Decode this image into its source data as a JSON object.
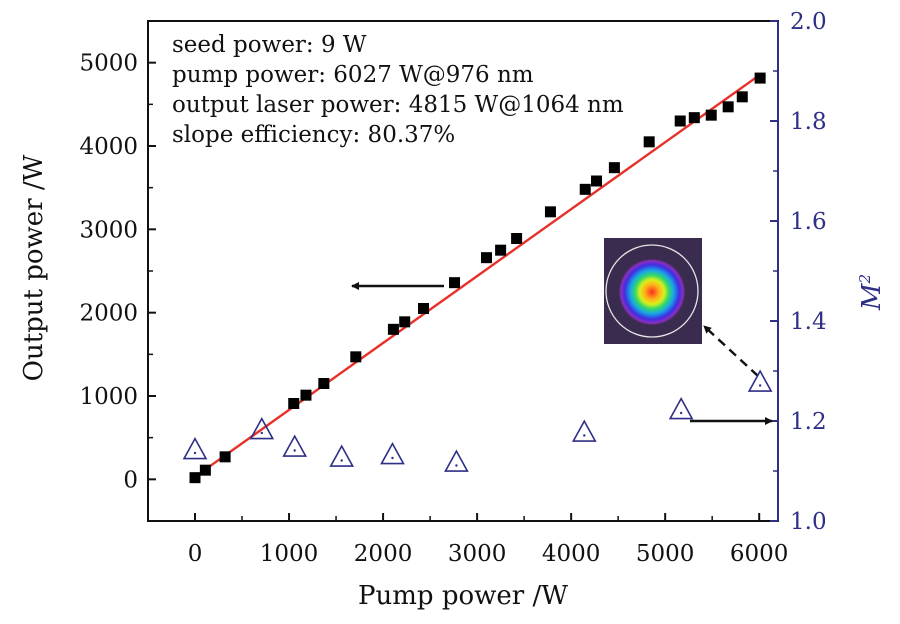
{
  "chart_data": {
    "type": "scatter",
    "xlabel": "Pump power /W",
    "ylabel": "Output power /W",
    "y2label_main": "M",
    "y2label_sup": "2",
    "xlim": [
      -500,
      6200
    ],
    "ylim": [
      -500,
      5500
    ],
    "y2lim": [
      1.0,
      2.0
    ],
    "x_ticks": [
      0,
      1000,
      2000,
      3000,
      4000,
      5000,
      6000
    ],
    "y_ticks": [
      0,
      1000,
      2000,
      3000,
      4000,
      5000
    ],
    "y2_ticks": [
      "1.0",
      "1.2",
      "1.4",
      "1.6",
      "1.8",
      "2.0"
    ],
    "annotations": [
      "seed power: 9 W",
      "pump power: 6027 W@976 nm",
      "output laser power: 4815 W@1064 nm",
      "slope efficiency: 80.37%"
    ],
    "output_power": {
      "marker": "filled-square",
      "color": "#000000",
      "axis": "left",
      "x": [
        0,
        110,
        320,
        1050,
        1180,
        1370,
        1710,
        2110,
        2230,
        2430,
        2760,
        3100,
        3250,
        3420,
        3780,
        4150,
        4270,
        4460,
        4830,
        5160,
        5310,
        5490,
        5670,
        5820,
        6010
      ],
      "y": [
        20,
        110,
        270,
        910,
        1010,
        1150,
        1470,
        1800,
        1890,
        2050,
        2360,
        2660,
        2750,
        2890,
        3210,
        3480,
        3580,
        3740,
        4050,
        4300,
        4340,
        4370,
        4470,
        4590,
        4815
      ]
    },
    "fit_line": {
      "color": "#e8312a",
      "axis": "left",
      "x": [
        0,
        6027
      ],
      "y": [
        30,
        4870
      ]
    },
    "m_squared": {
      "marker": "open-triangle",
      "color": "#2e2f86",
      "axis": "right",
      "x": [
        0,
        710,
        1060,
        1560,
        2100,
        2780,
        4140,
        5170,
        6010
      ],
      "y": [
        1.14,
        1.18,
        1.145,
        1.125,
        1.13,
        1.115,
        1.175,
        1.22,
        1.275
      ]
    },
    "arrows": [
      {
        "direction": "left",
        "points_to": "left-axis"
      },
      {
        "direction": "right",
        "points_to": "right-axis"
      }
    ],
    "inset": {
      "description": "far-field beam profile",
      "background": "#3a2c4e"
    },
    "colors": {
      "left_axis": "#111111",
      "right_axis": "#2e2f86",
      "fit_line": "#e8312a",
      "markers_left": "#000000",
      "markers_right": "#2e2f86"
    }
  }
}
